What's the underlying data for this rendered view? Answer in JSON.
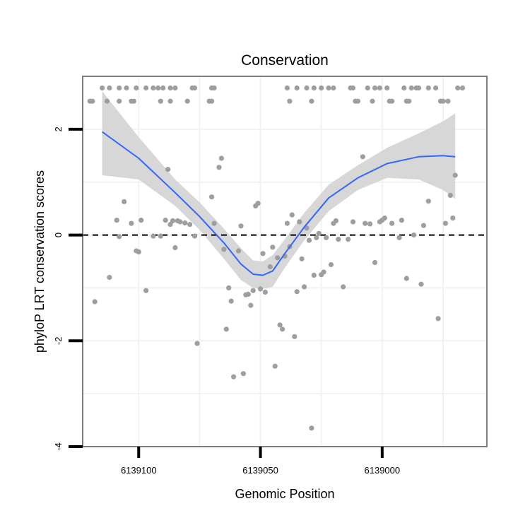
{
  "colors": {
    "points": "#9e9e9e",
    "smooth_line": "#3366ff",
    "ribbon": "#d3d3d3",
    "panel_border": "#7f7f7f",
    "grid": "#f2f2f2",
    "reference_line": "#000000"
  },
  "chart_data": {
    "type": "scatter",
    "title": "Conservation",
    "xlabel": "Genomic Position",
    "ylabel": "phyloP LRT conservation scores",
    "x_reversed": true,
    "xlim": [
      6139123,
      6138957
    ],
    "ylim": [
      -4,
      3
    ],
    "x_ticks": [
      {
        "value": 6139100,
        "label": "6139100"
      },
      {
        "value": 6139050,
        "label": "6139050"
      },
      {
        "value": 6139000,
        "label": "6139000"
      }
    ],
    "y_ticks": [
      {
        "value": -4,
        "label": "-4"
      },
      {
        "value": -2,
        "label": "-2"
      },
      {
        "value": 0,
        "label": "0"
      },
      {
        "value": 2,
        "label": "2"
      }
    ],
    "grid": true,
    "reference_line": {
      "y": 0,
      "style": "dashed"
    },
    "points": [
      [
        6139115,
        2.78
      ],
      [
        6139112,
        2.78
      ],
      [
        6139108,
        2.78
      ],
      [
        6139105,
        2.78
      ],
      [
        6139101,
        2.78
      ],
      [
        6139097,
        2.78
      ],
      [
        6139094,
        2.78
      ],
      [
        6139092,
        2.78
      ],
      [
        6139090,
        2.78
      ],
      [
        6139087,
        2.78
      ],
      [
        6139085,
        2.78
      ],
      [
        6139078,
        2.78
      ],
      [
        6139077,
        2.78
      ],
      [
        6139070,
        2.78
      ],
      [
        6139069,
        2.78
      ],
      [
        6139039,
        2.78
      ],
      [
        6139035,
        2.78
      ],
      [
        6139031,
        2.78
      ],
      [
        6139028,
        2.78
      ],
      [
        6139025,
        2.78
      ],
      [
        6139022,
        2.78
      ],
      [
        6139020,
        2.78
      ],
      [
        6139013,
        2.78
      ],
      [
        6139012,
        2.78
      ],
      [
        6139006,
        2.78
      ],
      [
        6139003,
        2.78
      ],
      [
        6139001,
        2.78
      ],
      [
        6138998,
        2.78
      ],
      [
        6138991,
        2.78
      ],
      [
        6138988,
        2.78
      ],
      [
        6138986,
        2.78
      ],
      [
        6138985,
        2.78
      ],
      [
        6138981,
        2.78
      ],
      [
        6138978,
        2.78
      ],
      [
        6138969,
        2.78
      ],
      [
        6138967,
        2.78
      ],
      [
        6139120,
        2.53
      ],
      [
        6139119,
        2.53
      ],
      [
        6139113,
        2.53
      ],
      [
        6139108,
        2.53
      ],
      [
        6139103,
        2.53
      ],
      [
        6139102,
        2.53
      ],
      [
        6139091,
        2.53
      ],
      [
        6139087,
        2.53
      ],
      [
        6139080,
        2.53
      ],
      [
        6139071,
        2.53
      ],
      [
        6139070,
        2.53
      ],
      [
        6139038,
        2.53
      ],
      [
        6139029,
        2.53
      ],
      [
        6139011,
        2.53
      ],
      [
        6139010,
        2.53
      ],
      [
        6139004,
        2.53
      ],
      [
        6138997,
        2.53
      ],
      [
        6138996,
        2.53
      ],
      [
        6138990,
        2.53
      ],
      [
        6138989,
        2.53
      ],
      [
        6138976,
        2.53
      ],
      [
        6138975,
        2.53
      ],
      [
        6138973,
        2.53
      ],
      [
        6139118,
        -1.26
      ],
      [
        6139112,
        -0.8
      ],
      [
        6139109,
        0.28
      ],
      [
        6139108,
        -0.03
      ],
      [
        6139106,
        0.63
      ],
      [
        6139103,
        0.22
      ],
      [
        6139101,
        -0.3
      ],
      [
        6139100,
        -0.32
      ],
      [
        6139099,
        0.28
      ],
      [
        6139097,
        -1.05
      ],
      [
        6139094,
        -0.02
      ],
      [
        6139091,
        -0.02
      ],
      [
        6139089,
        0.28
      ],
      [
        6139088,
        1.24
      ],
      [
        6139087,
        0.2
      ],
      [
        6139086,
        0.27
      ],
      [
        6139085,
        -0.24
      ],
      [
        6139084,
        0.27
      ],
      [
        6139083,
        0.25
      ],
      [
        6139081,
        0.23
      ],
      [
        6139079,
        0.2
      ],
      [
        6139077,
        -0.02
      ],
      [
        6139076,
        -2.05
      ],
      [
        6139070,
        0.72
      ],
      [
        6139069,
        0.22
      ],
      [
        6139067,
        1.28
      ],
      [
        6139066,
        1.45
      ],
      [
        6139065,
        -0.27
      ],
      [
        6139064,
        -1.78
      ],
      [
        6139063,
        -1.0
      ],
      [
        6139062,
        -1.25
      ],
      [
        6139061,
        -2.68
      ],
      [
        6139059,
        -0.3
      ],
      [
        6139058,
        0.17
      ],
      [
        6139057,
        -2.62
      ],
      [
        6139056,
        -1.13
      ],
      [
        6139055,
        -1.12
      ],
      [
        6139054,
        -1.33
      ],
      [
        6139053,
        -1.05
      ],
      [
        6139052,
        0.55
      ],
      [
        6139051,
        0.6
      ],
      [
        6139050,
        -1.02
      ],
      [
        6139049,
        -0.35
      ],
      [
        6139048,
        -1.08
      ],
      [
        6139046,
        -0.6
      ],
      [
        6139045,
        -0.23
      ],
      [
        6139044,
        -2.48
      ],
      [
        6139043,
        -0.43
      ],
      [
        6139042,
        -1.7
      ],
      [
        6139041,
        -1.78
      ],
      [
        6139040,
        -0.4
      ],
      [
        6139039,
        0.22
      ],
      [
        6139038,
        -0.22
      ],
      [
        6139037,
        0.38
      ],
      [
        6139036,
        -1.92
      ],
      [
        6139035,
        -1.07
      ],
      [
        6139034,
        0.25
      ],
      [
        6139033,
        -0.45
      ],
      [
        6139032,
        -0.98
      ],
      [
        6139031,
        0.13
      ],
      [
        6139030,
        -0.1
      ],
      [
        6139029,
        -3.65
      ],
      [
        6139028,
        -0.76
      ],
      [
        6139027,
        -0.05
      ],
      [
        6139026,
        0.03
      ],
      [
        6139025,
        -0.75
      ],
      [
        6139024,
        -0.7
      ],
      [
        6139023,
        -0.05
      ],
      [
        6139021,
        -0.56
      ],
      [
        6139020,
        0.22
      ],
      [
        6139019,
        0.27
      ],
      [
        6139018,
        -0.08
      ],
      [
        6139016,
        -0.98
      ],
      [
        6139014,
        -0.08
      ],
      [
        6139012,
        0.25
      ],
      [
        6139008,
        1.48
      ],
      [
        6139007,
        0.22
      ],
      [
        6139005,
        0.21
      ],
      [
        6139003,
        -0.52
      ],
      [
        6139001,
        0.25
      ],
      [
        6139000,
        0.28
      ],
      [
        6138999,
        0.32
      ],
      [
        6138996,
        0.22
      ],
      [
        6138993,
        -0.05
      ],
      [
        6138992,
        0.28
      ],
      [
        6138990,
        -0.82
      ],
      [
        6138987,
        0.0
      ],
      [
        6138984,
        -0.93
      ],
      [
        6138983,
        0.18
      ],
      [
        6138981,
        0.64
      ],
      [
        6138977,
        -1.58
      ],
      [
        6138974,
        0.22
      ],
      [
        6138972,
        0.75
      ],
      [
        6138971,
        0.32
      ],
      [
        6138970,
        1.13
      ]
    ],
    "smooth": {
      "x": [
        6139115,
        6139100,
        6139085,
        6139075,
        6139065,
        6139058,
        6139053,
        6139049,
        6139045,
        6139040,
        6139032,
        6139022,
        6139010,
        6138998,
        6138985,
        6138975,
        6138970
      ],
      "y": [
        1.95,
        1.45,
        0.8,
        0.35,
        -0.15,
        -0.55,
        -0.74,
        -0.76,
        -0.68,
        -0.35,
        0.15,
        0.7,
        1.08,
        1.35,
        1.48,
        1.5,
        1.48
      ],
      "lower": [
        1.13,
        1.05,
        0.55,
        0.1,
        -0.45,
        -0.85,
        -1.0,
        -1.02,
        -0.98,
        -0.62,
        -0.1,
        0.45,
        0.85,
        1.08,
        1.05,
        0.85,
        0.68
      ],
      "upper": [
        2.72,
        1.85,
        1.05,
        0.62,
        0.12,
        -0.25,
        -0.48,
        -0.5,
        -0.38,
        -0.08,
        0.42,
        0.95,
        1.32,
        1.65,
        1.92,
        2.15,
        2.3
      ]
    }
  }
}
